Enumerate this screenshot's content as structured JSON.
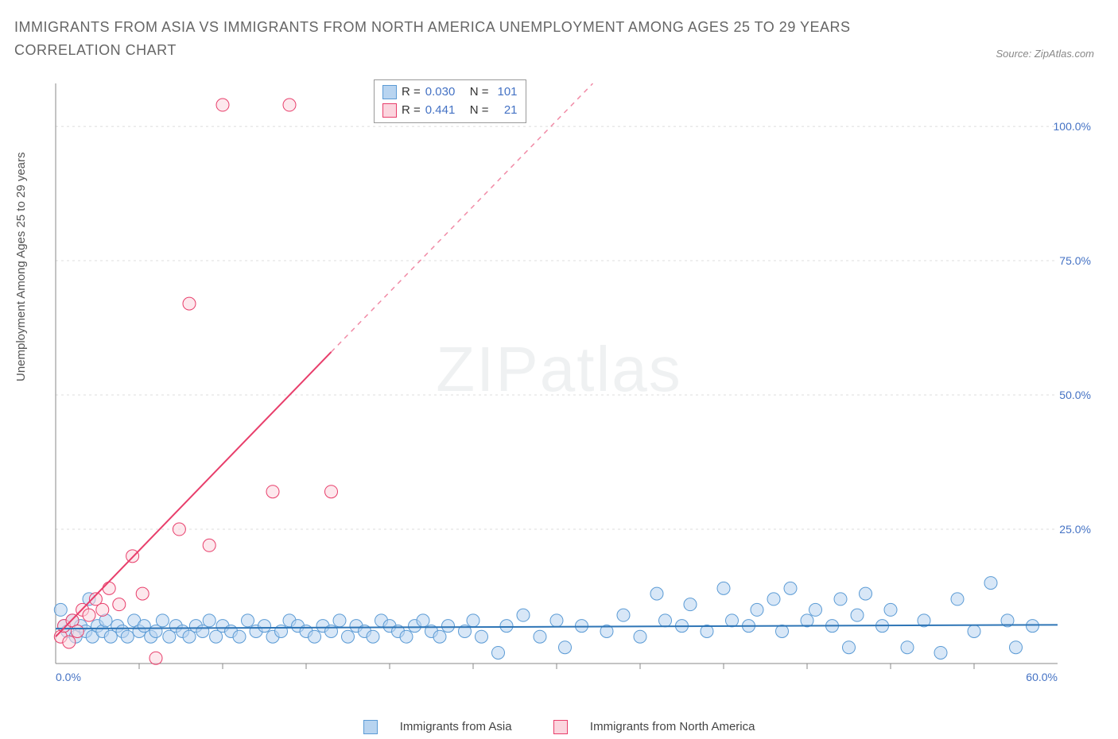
{
  "title": "IMMIGRANTS FROM ASIA VS IMMIGRANTS FROM NORTH AMERICA UNEMPLOYMENT AMONG AGES 25 TO 29 YEARS CORRELATION CHART",
  "source_label": "Source: ZipAtlas.com",
  "ylabel": "Unemployment Among Ages 25 to 29 years",
  "watermark": "ZIPatlas",
  "colors": {
    "blue_fill": "#b8d4f0",
    "blue_stroke": "#5b9bd5",
    "blue_trend": "#2e75b6",
    "blue_label": "#4472c4",
    "pink_fill": "#fbd5de",
    "pink_stroke": "#e83e6b",
    "pink_trend": "#e83e6b",
    "grid": "#dddddd",
    "axis": "#888888",
    "title_color": "#666666",
    "text_color": "#555555",
    "background": "#ffffff"
  },
  "chart": {
    "type": "scatter",
    "xlim": [
      0,
      60
    ],
    "ylim": [
      0,
      108
    ],
    "xtick_step": 5,
    "ytick_step": 25,
    "x_label_major": [
      0.0,
      60.0
    ],
    "y_label_major": [
      25.0,
      50.0,
      75.0,
      100.0
    ],
    "marker_radius": 8,
    "marker_opacity": 0.55,
    "grid_dash": "3,4",
    "trend_width": 2,
    "series": [
      {
        "name": "Immigrants from Asia",
        "color_fill_key": "blue_fill",
        "color_stroke_key": "blue_stroke",
        "trend_color_key": "blue_trend",
        "R": "0.030",
        "N": "101",
        "trend": {
          "x1": 0,
          "y1": 6.5,
          "x2": 60,
          "y2": 7.2
        },
        "points": [
          [
            0.3,
            10
          ],
          [
            0.5,
            7
          ],
          [
            0.7,
            6
          ],
          [
            1.0,
            8
          ],
          [
            1.2,
            5
          ],
          [
            1.5,
            7
          ],
          [
            1.8,
            6
          ],
          [
            2.0,
            12
          ],
          [
            2.2,
            5
          ],
          [
            2.5,
            7
          ],
          [
            2.8,
            6
          ],
          [
            3.0,
            8
          ],
          [
            3.3,
            5
          ],
          [
            3.7,
            7
          ],
          [
            4.0,
            6
          ],
          [
            4.3,
            5
          ],
          [
            4.7,
            8
          ],
          [
            5.0,
            6
          ],
          [
            5.3,
            7
          ],
          [
            5.7,
            5
          ],
          [
            6.0,
            6
          ],
          [
            6.4,
            8
          ],
          [
            6.8,
            5
          ],
          [
            7.2,
            7
          ],
          [
            7.6,
            6
          ],
          [
            8.0,
            5
          ],
          [
            8.4,
            7
          ],
          [
            8.8,
            6
          ],
          [
            9.2,
            8
          ],
          [
            9.6,
            5
          ],
          [
            10.0,
            7
          ],
          [
            10.5,
            6
          ],
          [
            11.0,
            5
          ],
          [
            11.5,
            8
          ],
          [
            12.0,
            6
          ],
          [
            12.5,
            7
          ],
          [
            13.0,
            5
          ],
          [
            13.5,
            6
          ],
          [
            14.0,
            8
          ],
          [
            14.5,
            7
          ],
          [
            15.0,
            6
          ],
          [
            15.5,
            5
          ],
          [
            16.0,
            7
          ],
          [
            16.5,
            6
          ],
          [
            17.0,
            8
          ],
          [
            17.5,
            5
          ],
          [
            18.0,
            7
          ],
          [
            18.5,
            6
          ],
          [
            19.0,
            5
          ],
          [
            19.5,
            8
          ],
          [
            20.0,
            7
          ],
          [
            20.5,
            6
          ],
          [
            21.0,
            5
          ],
          [
            21.5,
            7
          ],
          [
            22.0,
            8
          ],
          [
            22.5,
            6
          ],
          [
            23.0,
            5
          ],
          [
            23.5,
            7
          ],
          [
            24.5,
            6
          ],
          [
            25.0,
            8
          ],
          [
            25.5,
            5
          ],
          [
            26.5,
            2
          ],
          [
            27.0,
            7
          ],
          [
            28.0,
            9
          ],
          [
            29.0,
            5
          ],
          [
            30.0,
            8
          ],
          [
            30.5,
            3
          ],
          [
            31.5,
            7
          ],
          [
            33.0,
            6
          ],
          [
            34.0,
            9
          ],
          [
            35.0,
            5
          ],
          [
            36.0,
            13
          ],
          [
            36.5,
            8
          ],
          [
            37.5,
            7
          ],
          [
            38.0,
            11
          ],
          [
            39.0,
            6
          ],
          [
            40.0,
            14
          ],
          [
            40.5,
            8
          ],
          [
            41.5,
            7
          ],
          [
            42.0,
            10
          ],
          [
            43.0,
            12
          ],
          [
            43.5,
            6
          ],
          [
            44.0,
            14
          ],
          [
            45.0,
            8
          ],
          [
            45.5,
            10
          ],
          [
            46.5,
            7
          ],
          [
            47.0,
            12
          ],
          [
            47.5,
            3
          ],
          [
            48.0,
            9
          ],
          [
            48.5,
            13
          ],
          [
            49.5,
            7
          ],
          [
            50.0,
            10
          ],
          [
            51.0,
            3
          ],
          [
            52.0,
            8
          ],
          [
            53.0,
            2
          ],
          [
            54.0,
            12
          ],
          [
            55.0,
            6
          ],
          [
            56.0,
            15
          ],
          [
            57.0,
            8
          ],
          [
            57.5,
            3
          ],
          [
            58.5,
            7
          ]
        ]
      },
      {
        "name": "Immigrants from North America",
        "color_fill_key": "pink_fill",
        "color_stroke_key": "pink_stroke",
        "trend_color_key": "pink_trend",
        "R": "0.441",
        "N": "21",
        "trend": {
          "x1": 0,
          "y1": 5,
          "x2": 16.5,
          "y2": 58,
          "x2_dash": 40,
          "y2_dash": 133
        },
        "points": [
          [
            0.3,
            5
          ],
          [
            0.5,
            7
          ],
          [
            0.8,
            4
          ],
          [
            1.0,
            8
          ],
          [
            1.3,
            6
          ],
          [
            1.6,
            10
          ],
          [
            2.0,
            9
          ],
          [
            2.4,
            12
          ],
          [
            2.8,
            10
          ],
          [
            3.2,
            14
          ],
          [
            3.8,
            11
          ],
          [
            4.6,
            20
          ],
          [
            5.2,
            13
          ],
          [
            6.0,
            1
          ],
          [
            7.4,
            25
          ],
          [
            8.0,
            67
          ],
          [
            9.2,
            22
          ],
          [
            10.0,
            104
          ],
          [
            13.0,
            32
          ],
          [
            14.0,
            104
          ],
          [
            16.5,
            32
          ]
        ]
      }
    ]
  },
  "legend_top": {
    "r_label": "R =",
    "n_label": "N ="
  },
  "legend_bottom": [
    {
      "label": "Immigrants from Asia",
      "fill_key": "blue_fill",
      "stroke_key": "blue_stroke"
    },
    {
      "label": "Immigrants from North America",
      "fill_key": "pink_fill",
      "stroke_key": "pink_stroke"
    }
  ]
}
